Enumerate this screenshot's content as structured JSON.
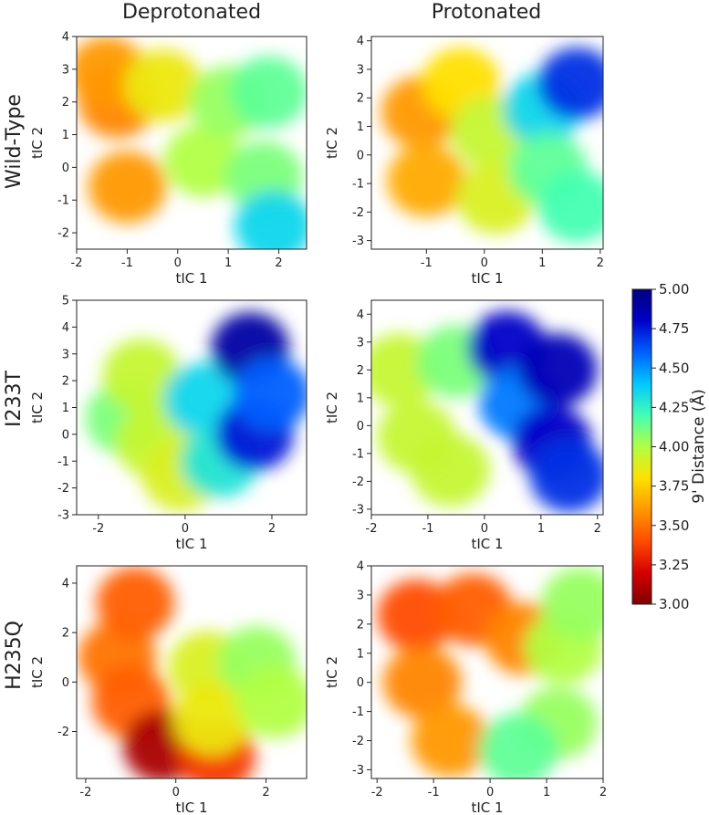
{
  "figure": {
    "column_titles": [
      "Deprotonated",
      "Protonated"
    ],
    "row_labels": [
      "Wild-Type",
      "I233T",
      "H235Q"
    ]
  },
  "colorbar": {
    "label": "9' Distance (Å)",
    "min": 3.0,
    "max": 5.0,
    "ticks": [
      "3.00",
      "3.25",
      "3.50",
      "3.75",
      "4.00",
      "4.25",
      "4.50",
      "4.75",
      "5.00"
    ],
    "colormap": [
      "#800000",
      "#d40000",
      "#ff4b00",
      "#ff9800",
      "#ffe000",
      "#b2ff44",
      "#44ffb2",
      "#00c8ff",
      "#0060ff",
      "#0000c8",
      "#000080"
    ]
  },
  "chart_data": [
    {
      "type": "heatmap",
      "row": "Wild-Type",
      "column": "Deprotonated",
      "xlabel": "tIC 1",
      "ylabel": "tIC 2",
      "xlim": [
        -2.0,
        2.55
      ],
      "ylim": [
        -2.5,
        4.0
      ],
      "xticks": [
        "-2",
        "-1",
        "0",
        "1",
        "2"
      ],
      "yticks": [
        "-2",
        "-1",
        "0",
        "1",
        "2",
        "3",
        "4"
      ],
      "states": [
        {
          "x": -1.2,
          "y": 2.0,
          "value": 3.55
        },
        {
          "x": -1.4,
          "y": 2.9,
          "value": 3.6
        },
        {
          "x": -1.0,
          "y": -0.6,
          "value": 3.6
        },
        {
          "x": -0.3,
          "y": 2.5,
          "value": 3.85
        },
        {
          "x": 0.5,
          "y": 0.2,
          "value": 4.0
        },
        {
          "x": 1.0,
          "y": 2.0,
          "value": 4.05
        },
        {
          "x": 1.8,
          "y": 2.3,
          "value": 4.15
        },
        {
          "x": 1.7,
          "y": -0.3,
          "value": 4.1
        },
        {
          "x": 1.9,
          "y": -1.8,
          "value": 4.35
        }
      ]
    },
    {
      "type": "heatmap",
      "row": "Wild-Type",
      "column": "Protonated",
      "xlabel": "tIC 1",
      "ylabel": "tIC 2",
      "xlim": [
        -1.95,
        2.05
      ],
      "ylim": [
        -3.3,
        4.15
      ],
      "xticks": [
        "-1",
        "0",
        "1",
        "2"
      ],
      "yticks": [
        "-3",
        "-2",
        "-1",
        "0",
        "1",
        "2",
        "3",
        "4"
      ],
      "states": [
        {
          "x": -1.1,
          "y": 1.5,
          "value": 3.6
        },
        {
          "x": -1.0,
          "y": -0.9,
          "value": 3.65
        },
        {
          "x": -0.4,
          "y": 2.5,
          "value": 3.8
        },
        {
          "x": 0.1,
          "y": 0.8,
          "value": 3.95
        },
        {
          "x": 0.2,
          "y": -1.5,
          "value": 3.9
        },
        {
          "x": 1.0,
          "y": 1.6,
          "value": 4.35
        },
        {
          "x": 1.6,
          "y": 2.5,
          "value": 4.7
        },
        {
          "x": 1.1,
          "y": -0.5,
          "value": 4.15
        },
        {
          "x": 1.6,
          "y": -1.8,
          "value": 4.2
        }
      ]
    },
    {
      "type": "heatmap",
      "row": "I233T",
      "column": "Deprotonated",
      "xlabel": "tIC 1",
      "ylabel": "tIC 2",
      "xlim": [
        -2.5,
        2.8
      ],
      "ylim": [
        -3.0,
        5.0
      ],
      "xticks": [
        "-2",
        "0",
        "2"
      ],
      "yticks": [
        "-3",
        "-2",
        "-1",
        "0",
        "1",
        "2",
        "3",
        "4",
        "5"
      ],
      "states": [
        {
          "x": -1.4,
          "y": 0.6,
          "value": 4.1
        },
        {
          "x": -1.0,
          "y": 2.2,
          "value": 3.95
        },
        {
          "x": -0.7,
          "y": -0.3,
          "value": 3.95
        },
        {
          "x": -0.1,
          "y": -1.5,
          "value": 3.9
        },
        {
          "x": 0.4,
          "y": 1.3,
          "value": 4.35
        },
        {
          "x": 0.8,
          "y": -1.0,
          "value": 4.3
        },
        {
          "x": 1.5,
          "y": 3.2,
          "value": 4.9
        },
        {
          "x": 1.6,
          "y": 0.0,
          "value": 4.75
        },
        {
          "x": 2.0,
          "y": 1.5,
          "value": 4.6
        }
      ]
    },
    {
      "type": "heatmap",
      "row": "I233T",
      "column": "Protonated",
      "xlabel": "tIC 1",
      "ylabel": "tIC 2",
      "xlim": [
        -2.0,
        2.1
      ],
      "ylim": [
        -3.2,
        4.5
      ],
      "xticks": [
        "-2",
        "-1",
        "0",
        "1",
        "2"
      ],
      "yticks": [
        "-3",
        "-2",
        "-1",
        "0",
        "1",
        "2",
        "3",
        "4"
      ],
      "states": [
        {
          "x": -1.5,
          "y": 2.0,
          "value": 3.95
        },
        {
          "x": -1.2,
          "y": -0.4,
          "value": 3.95
        },
        {
          "x": -0.5,
          "y": 2.3,
          "value": 4.1
        },
        {
          "x": -0.6,
          "y": -1.6,
          "value": 3.95
        },
        {
          "x": 0.4,
          "y": 2.8,
          "value": 4.8
        },
        {
          "x": 0.6,
          "y": 0.8,
          "value": 4.55
        },
        {
          "x": 1.3,
          "y": 2.0,
          "value": 4.85
        },
        {
          "x": 1.2,
          "y": -0.6,
          "value": 4.8
        },
        {
          "x": 1.5,
          "y": -1.8,
          "value": 4.7
        }
      ]
    },
    {
      "type": "heatmap",
      "row": "H235Q",
      "column": "Deprotonated",
      "xlabel": "tIC 1",
      "ylabel": "tIC 2",
      "xlim": [
        -2.2,
        2.9
      ],
      "ylim": [
        -3.9,
        4.7
      ],
      "xticks": [
        "-2",
        "0",
        "2"
      ],
      "yticks": [
        "-2",
        "0",
        "2",
        "4"
      ],
      "states": [
        {
          "x": -1.3,
          "y": 1.0,
          "value": 3.5
        },
        {
          "x": -0.9,
          "y": 3.2,
          "value": 3.45
        },
        {
          "x": -1.0,
          "y": -0.8,
          "value": 3.45
        },
        {
          "x": -0.3,
          "y": -2.6,
          "value": 3.1
        },
        {
          "x": 0.9,
          "y": -3.0,
          "value": 3.35
        },
        {
          "x": 0.7,
          "y": 0.6,
          "value": 3.9
        },
        {
          "x": 0.8,
          "y": -1.5,
          "value": 3.85
        },
        {
          "x": 1.8,
          "y": 0.8,
          "value": 4.05
        },
        {
          "x": 2.2,
          "y": -0.8,
          "value": 4.0
        }
      ]
    },
    {
      "type": "heatmap",
      "row": "H235Q",
      "column": "Protonated",
      "xlabel": "tIC 1",
      "ylabel": "tIC 2",
      "xlim": [
        -2.1,
        2.0
      ],
      "ylim": [
        -3.3,
        4.0
      ],
      "xticks": [
        "-2",
        "-1",
        "0",
        "1",
        "2"
      ],
      "yticks": [
        "-3",
        "-2",
        "-1",
        "0",
        "1",
        "2",
        "3",
        "4"
      ],
      "states": [
        {
          "x": -1.3,
          "y": 2.3,
          "value": 3.4
        },
        {
          "x": -0.3,
          "y": 2.5,
          "value": 3.45
        },
        {
          "x": -1.2,
          "y": 0.0,
          "value": 3.55
        },
        {
          "x": -0.7,
          "y": -2.0,
          "value": 3.6
        },
        {
          "x": 0.6,
          "y": 1.5,
          "value": 3.55
        },
        {
          "x": 1.3,
          "y": 1.2,
          "value": 4.0
        },
        {
          "x": 1.6,
          "y": 2.7,
          "value": 4.05
        },
        {
          "x": 1.2,
          "y": -1.4,
          "value": 4.05
        },
        {
          "x": 0.5,
          "y": -2.3,
          "value": 4.15
        }
      ]
    }
  ]
}
